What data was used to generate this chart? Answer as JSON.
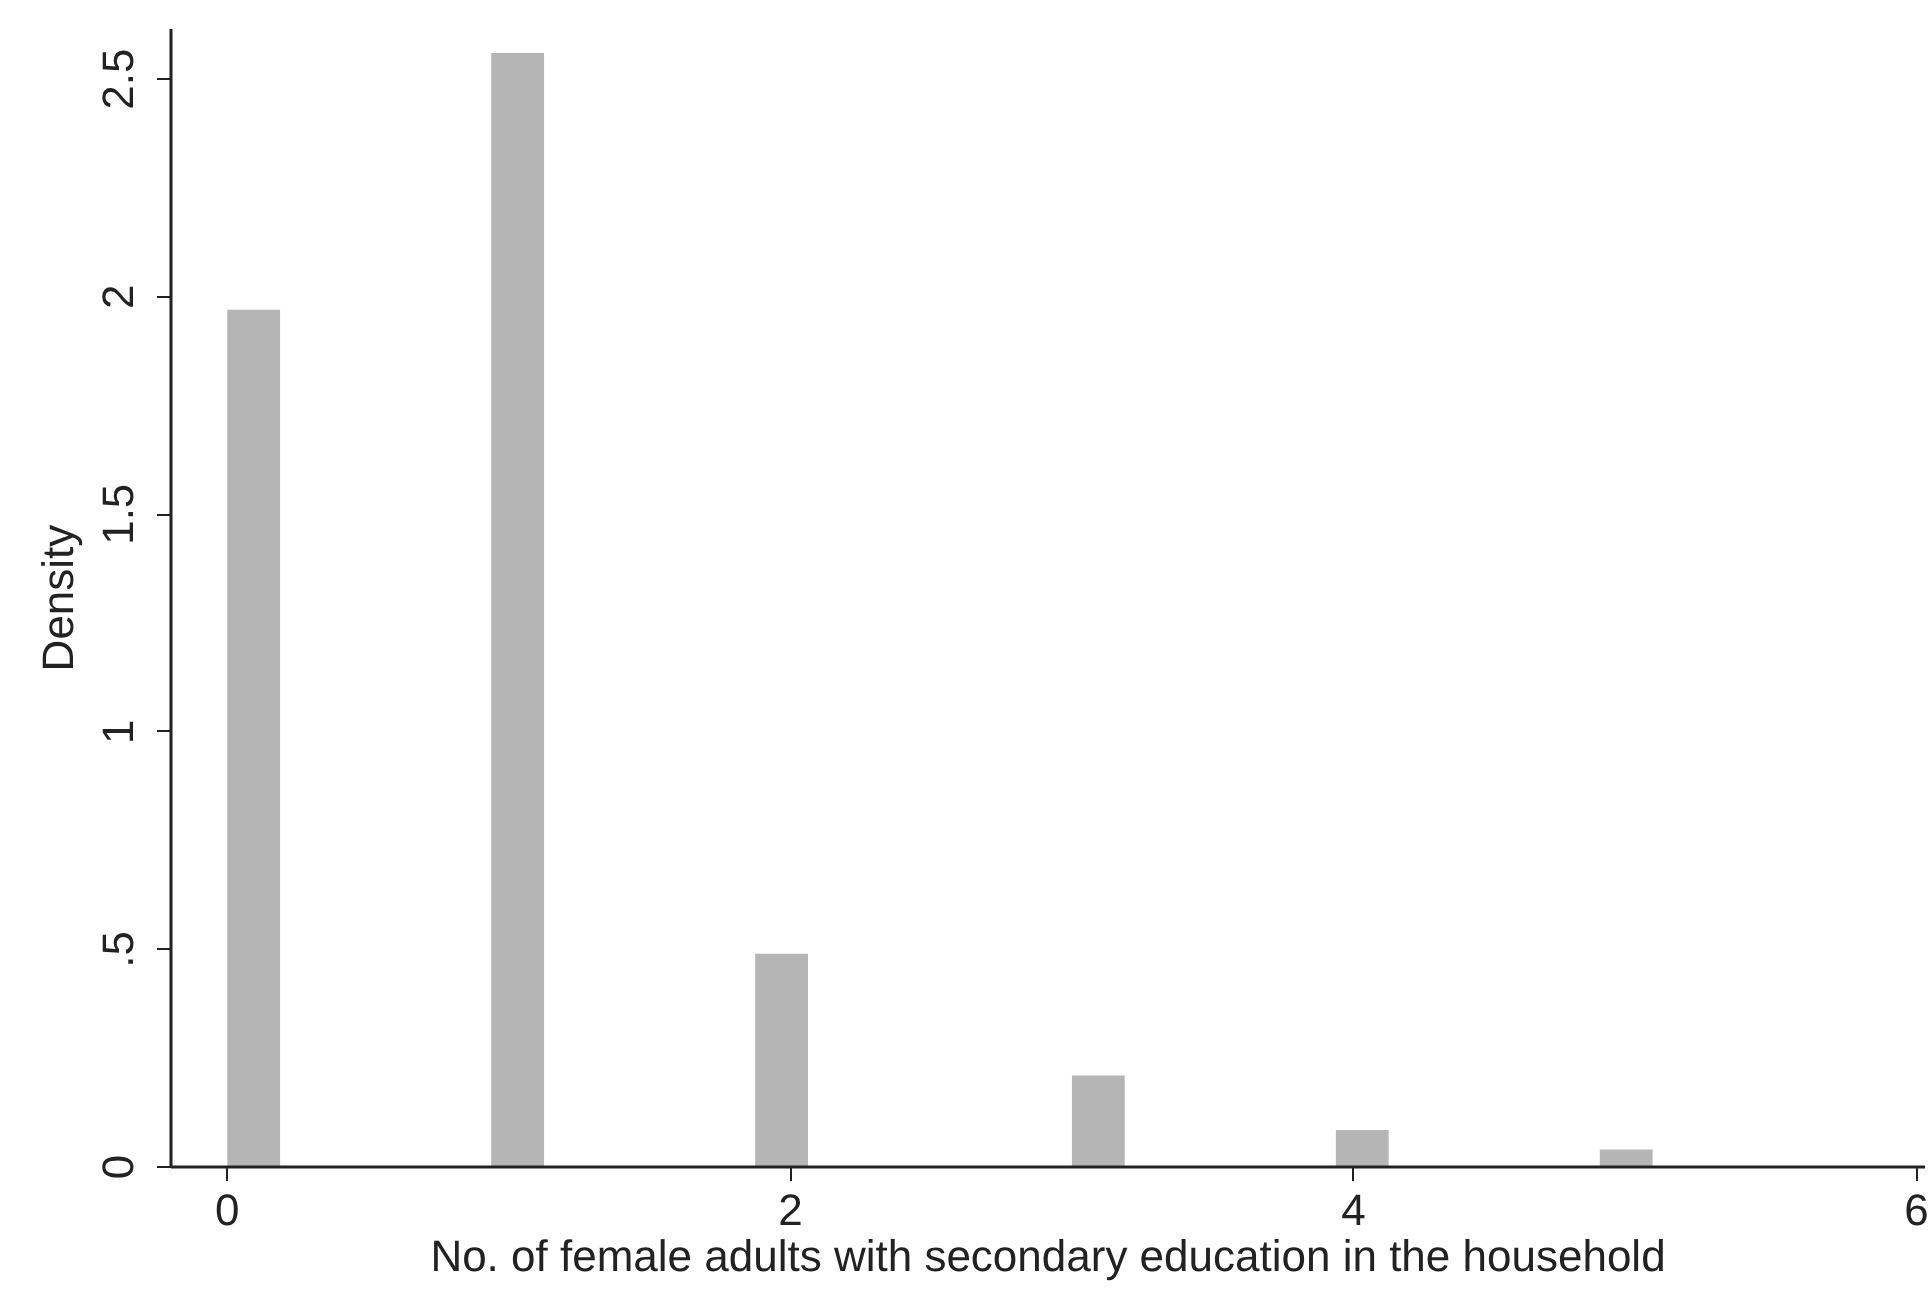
{
  "chart_data": {
    "type": "histogram",
    "xlabel": "No. of female adults with secondary education in the household",
    "ylabel": "Density",
    "bins": [
      0,
      0.1875,
      0.375,
      0.5625,
      0.75,
      0.9375,
      1.125,
      1.3125,
      1.5,
      1.6875,
      1.875,
      2.0625,
      2.25,
      2.4375,
      2.625,
      2.8125,
      3,
      3.1875,
      3.375,
      3.5625,
      3.75,
      3.9375,
      4.125,
      4.3125,
      4.5,
      4.6875,
      4.875,
      5.0625,
      5.25,
      5.4375,
      5.625,
      5.8125,
      6
    ],
    "values": [
      1.97,
      0,
      0,
      0,
      0,
      2.56,
      0,
      0,
      0,
      0,
      0.49,
      0,
      0,
      0,
      0,
      0,
      0.21,
      0,
      0,
      0,
      0,
      0.085,
      0,
      0,
      0,
      0,
      0.04,
      0,
      0,
      0,
      0,
      0
    ],
    "color": "#b5b5b5",
    "xlim": [
      -0.2,
      6.03
    ],
    "ylim": [
      0,
      2.615
    ],
    "xticks": [
      0,
      2,
      4,
      6
    ],
    "yticks": [
      0,
      {
        "value": 0.5,
        "label": ".5"
      },
      1,
      1.5,
      2,
      2.5
    ],
    "grid": false
  }
}
